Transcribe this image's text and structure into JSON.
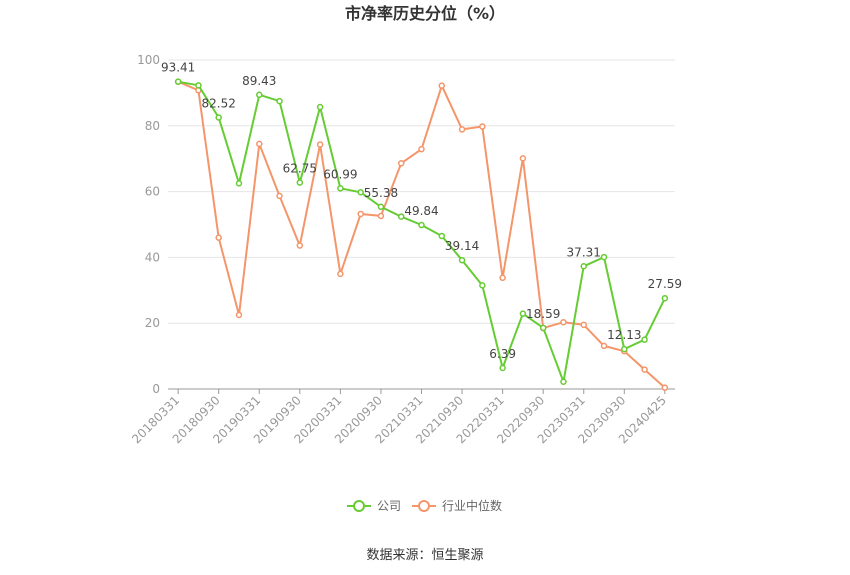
{
  "chart_data": {
    "type": "line",
    "title": "市净率历史分位（%）",
    "ylim": [
      0,
      100
    ],
    "yticks": [
      0,
      20,
      40,
      60,
      80,
      100
    ],
    "x": [
      "20180331",
      "20180630",
      "20180930",
      "20181231",
      "20190331",
      "20190630",
      "20190930",
      "20191231",
      "20200331",
      "20200630",
      "20200930",
      "20201231",
      "20210331",
      "20210630",
      "20210930",
      "20211231",
      "20220331",
      "20220630",
      "20220930",
      "20221231",
      "20230331",
      "20230630",
      "20230930",
      "20231231",
      "20240425"
    ],
    "x_tick_labels": [
      "20180331",
      "20180930",
      "20190331",
      "20190930",
      "20200331",
      "20200930",
      "20210331",
      "20210930",
      "20220331",
      "20220930",
      "20230331",
      "20230930",
      "20240425"
    ],
    "grid": true,
    "legend_position": "bottom",
    "series": [
      {
        "name": "公司",
        "color": "#66cc33",
        "values": [
          93.41,
          92.3,
          82.52,
          62.5,
          89.43,
          87.5,
          62.75,
          85.7,
          60.99,
          59.8,
          55.38,
          52.4,
          49.84,
          46.5,
          39.14,
          31.5,
          6.39,
          22.9,
          18.59,
          2.2,
          37.31,
          40.1,
          12.13,
          15.0,
          27.59
        ],
        "labels": {
          "0": "93.41",
          "2": "82.52",
          "4": "89.43",
          "6": "62.75",
          "8": "60.99",
          "10": "55.38",
          "12": "49.84",
          "14": "39.14",
          "16": "6.39",
          "18": "18.59",
          "20": "37.31",
          "22": "12.13",
          "24": "27.59"
        }
      },
      {
        "name": "行业中位数",
        "color": "#f4956a",
        "values": [
          93.4,
          90.8,
          46.0,
          22.5,
          74.5,
          58.7,
          43.6,
          74.3,
          35.0,
          53.2,
          52.6,
          68.6,
          72.9,
          92.2,
          78.9,
          79.8,
          33.8,
          70.1,
          18.5,
          20.3,
          19.5,
          13.1,
          11.5,
          5.9,
          0.4
        ]
      }
    ]
  },
  "source_text": "数据来源：恒生聚源"
}
